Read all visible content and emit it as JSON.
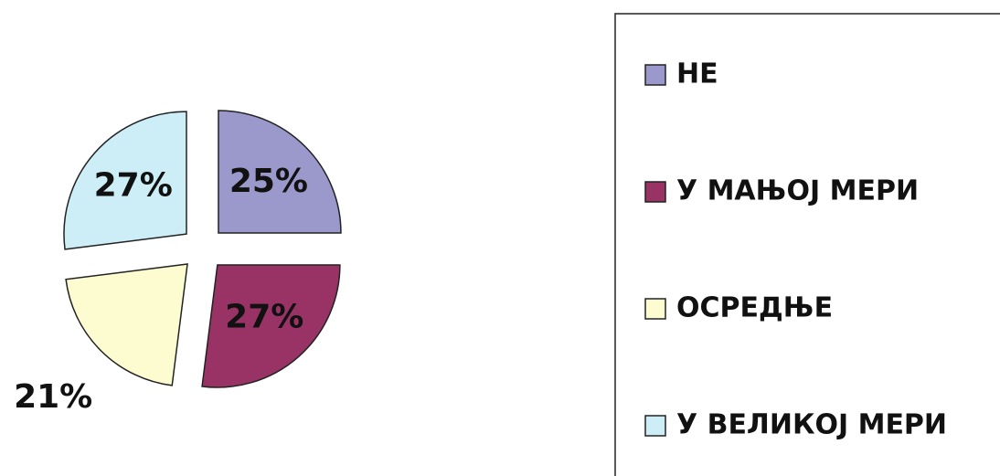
{
  "chart_data": {
    "type": "pie",
    "categories": [
      "НЕ",
      "У МАЊОЈ МЕРИ",
      "ОСРЕДЊЕ",
      "У ВЕЛИКОЈ МЕРИ"
    ],
    "values": [
      25,
      27,
      21,
      27
    ],
    "value_labels": [
      "25%",
      "27%",
      "21%",
      "27%"
    ],
    "colors": [
      "#9b98cc",
      "#993366",
      "#fdfcd0",
      "#cdeef6"
    ],
    "legend": "right"
  }
}
